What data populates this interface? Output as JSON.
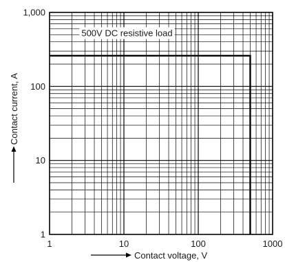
{
  "chart_data": {
    "type": "line",
    "xscale": "log",
    "yscale": "log",
    "xlim": [
      1,
      1000
    ],
    "ylim": [
      1,
      1000
    ],
    "x_ticks": [
      1,
      10,
      100,
      1000
    ],
    "x_tick_labels": [
      "1",
      "10",
      "100",
      "1000"
    ],
    "y_ticks": [
      1,
      10,
      100,
      1000
    ],
    "y_tick_labels": [
      "1",
      "10",
      "100",
      "1,000"
    ],
    "xlabel": "Contact voltage, V",
    "ylabel": "Contact current, A",
    "grid": true,
    "series": [
      {
        "x": [
          1,
          500,
          500
        ],
        "y": [
          260,
          260,
          1
        ]
      }
    ],
    "annotations": [
      {
        "text": "500V DC resistive load",
        "x": 11,
        "y": 530
      }
    ]
  }
}
